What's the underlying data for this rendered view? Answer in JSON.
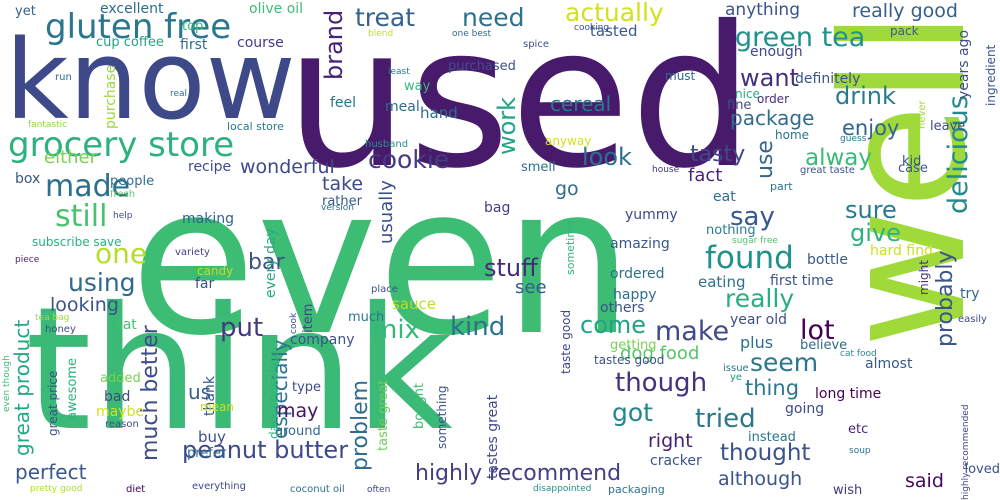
{
  "words": [
    {
      "text": "even",
      "color": "#3dbc74"
    },
    {
      "text": "used",
      "color": "#481a6c"
    },
    {
      "text": "think",
      "color": "#3aba76"
    },
    {
      "text": "well",
      "color": "#9fda3a"
    },
    {
      "text": "know",
      "color": "#3e4989"
    },
    {
      "text": "gluten free",
      "color": "#2a768e"
    },
    {
      "text": "grocery store",
      "color": "#2db27d"
    },
    {
      "text": "made",
      "color": "#2d708e"
    },
    {
      "text": "still",
      "color": "#4ac16d"
    },
    {
      "text": "one",
      "color": "#b5de2b"
    },
    {
      "text": "using",
      "color": "#31688e"
    },
    {
      "text": "looking",
      "color": "#3b528b"
    },
    {
      "text": "great product",
      "color": "#22a884"
    },
    {
      "text": "perfect",
      "color": "#38588c"
    },
    {
      "text": "treat",
      "color": "#34618d"
    },
    {
      "text": "need",
      "color": "#2c728e"
    },
    {
      "text": "actually",
      "color": "#d2e21b"
    },
    {
      "text": "anything",
      "color": "#3b528b"
    },
    {
      "text": "really good",
      "color": "#355f8d"
    },
    {
      "text": "green tea",
      "color": "#20928c"
    },
    {
      "text": "want",
      "color": "#46307e"
    },
    {
      "text": "drink",
      "color": "#287c8e"
    },
    {
      "text": "enjoy",
      "color": "#33638d"
    },
    {
      "text": "package",
      "color": "#2e6e8e"
    },
    {
      "text": "alway",
      "color": "#3aba76"
    },
    {
      "text": "tasty",
      "color": "#3f4889"
    },
    {
      "text": "fact",
      "color": "#482576"
    },
    {
      "text": "look",
      "color": "#2d708e"
    },
    {
      "text": "cookie",
      "color": "#443983"
    },
    {
      "text": "cereal",
      "color": "#2a788e"
    },
    {
      "text": "brand",
      "color": "#482173"
    },
    {
      "text": "work",
      "color": "#20a486"
    },
    {
      "text": "wonderful",
      "color": "#3e4989"
    },
    {
      "text": "either",
      "color": "#7ad151"
    },
    {
      "text": "found",
      "color": "#21918c"
    },
    {
      "text": "say",
      "color": "#38598c"
    },
    {
      "text": "sure",
      "color": "#2a788e"
    },
    {
      "text": "give",
      "color": "#2db27d"
    },
    {
      "text": "use",
      "color": "#31688e"
    },
    {
      "text": "delicious",
      "color": "#23898e"
    },
    {
      "text": "stuff",
      "color": "#482878"
    },
    {
      "text": "bar",
      "color": "#3b528b"
    },
    {
      "text": "really",
      "color": "#29af7f"
    },
    {
      "text": "lot",
      "color": "#440154"
    },
    {
      "text": "seem",
      "color": "#2a768e"
    },
    {
      "text": "probably",
      "color": "#39568c"
    },
    {
      "text": "kind",
      "color": "#2c728e"
    },
    {
      "text": "make",
      "color": "#3e4a89"
    },
    {
      "text": "come",
      "color": "#20a386"
    },
    {
      "text": "mix",
      "color": "#35b779"
    },
    {
      "text": "put",
      "color": "#443a83"
    },
    {
      "text": "much better",
      "color": "#3e4c8a"
    },
    {
      "text": "problem",
      "color": "#2e6d8e"
    },
    {
      "text": "especially",
      "color": "#2c738e"
    },
    {
      "text": "though",
      "color": "#46327e"
    },
    {
      "text": "dog food",
      "color": "#56c667"
    },
    {
      "text": "thing",
      "color": "#2a788e"
    },
    {
      "text": "got",
      "color": "#24868e"
    },
    {
      "text": "tried",
      "color": "#2a788e"
    },
    {
      "text": "thought",
      "color": "#3b528b"
    },
    {
      "text": "right",
      "color": "#481f70"
    },
    {
      "text": "peanut butter",
      "color": "#3e4989"
    },
    {
      "text": "highly recommend",
      "color": "#433e85"
    },
    {
      "text": "although",
      "color": "#3a548c"
    },
    {
      "text": "said",
      "color": "#460a5d"
    },
    {
      "text": "us",
      "color": "#34608d"
    },
    {
      "text": "may",
      "color": "#471365"
    },
    {
      "text": "take",
      "color": "#3e4989"
    },
    {
      "text": "usually",
      "color": "#3b518b"
    },
    {
      "text": "see",
      "color": "#375a8c"
    },
    {
      "text": "go",
      "color": "#2f6c8e"
    },
    {
      "text": "yet",
      "color": "#355f8d"
    },
    {
      "text": "excellent",
      "color": "#2f6b8e"
    },
    {
      "text": "olive oil",
      "color": "#3fbc73"
    },
    {
      "text": "top",
      "color": "#35b779"
    },
    {
      "text": "cup coffee",
      "color": "#20a486"
    },
    {
      "text": "first",
      "color": "#30698e"
    },
    {
      "text": "course",
      "color": "#443983"
    },
    {
      "text": "tasted",
      "color": "#38598c"
    },
    {
      "text": "purchased",
      "color": "#3d4e8a"
    },
    {
      "text": "must",
      "color": "#31688e"
    },
    {
      "text": "nice",
      "color": "#29af7f"
    },
    {
      "text": "definitely",
      "color": "#3b528b"
    },
    {
      "text": "enough",
      "color": "#3f4889"
    },
    {
      "text": "order",
      "color": "#472d7b"
    },
    {
      "text": "fine",
      "color": "#3c4f8a"
    },
    {
      "text": "home",
      "color": "#2d708e"
    },
    {
      "text": "leave",
      "color": "#3d4d8a"
    },
    {
      "text": "kid",
      "color": "#39568c"
    },
    {
      "text": "case",
      "color": "#39568c"
    },
    {
      "text": "part",
      "color": "#2c728e"
    },
    {
      "text": "eat",
      "color": "#2e6e8e"
    },
    {
      "text": "bottle",
      "color": "#38598c"
    },
    {
      "text": "hard find",
      "color": "#cae11f"
    },
    {
      "text": "first time",
      "color": "#3b528b"
    },
    {
      "text": "eating",
      "color": "#2d708e"
    },
    {
      "text": "year old",
      "color": "#3c4f8a"
    },
    {
      "text": "plus",
      "color": "#2d708e"
    },
    {
      "text": "believe",
      "color": "#30698e"
    },
    {
      "text": "almost",
      "color": "#38588c"
    },
    {
      "text": "long time",
      "color": "#440154"
    },
    {
      "text": "going",
      "color": "#3e4a89"
    },
    {
      "text": "etc",
      "color": "#482475"
    },
    {
      "text": "instead",
      "color": "#2b748e"
    },
    {
      "text": "cracker",
      "color": "#3a538b"
    },
    {
      "text": "wish",
      "color": "#453781"
    },
    {
      "text": "loved",
      "color": "#3b518b"
    },
    {
      "text": "try",
      "color": "#30698e"
    },
    {
      "text": "might",
      "color": "#46337e"
    },
    {
      "text": "years ago",
      "color": "#3d4e8a"
    },
    {
      "text": "ingredient",
      "color": "#3a548c"
    },
    {
      "text": "spice",
      "color": "#3d4e8a"
    },
    {
      "text": "cooking",
      "color": "#3b528b"
    },
    {
      "text": "one best",
      "color": "#2e6e8e"
    },
    {
      "text": "blend",
      "color": "#c2df23"
    },
    {
      "text": "pack",
      "color": "#38598c"
    },
    {
      "text": "run",
      "color": "#2f6c8e"
    },
    {
      "text": "least",
      "color": "#2a778e"
    },
    {
      "text": "real",
      "color": "#2e6d8e"
    },
    {
      "text": "purchase",
      "color": "#9bd93c"
    },
    {
      "text": "way",
      "color": "#35b779"
    },
    {
      "text": "meal",
      "color": "#2f6b8e"
    },
    {
      "text": "hand",
      "color": "#2e6d8e"
    },
    {
      "text": "feel",
      "color": "#2c738e"
    },
    {
      "text": "fantastic",
      "color": "#8bd646"
    },
    {
      "text": "local store",
      "color": "#2a788e"
    },
    {
      "text": "husband",
      "color": "#20928c"
    },
    {
      "text": "anyway",
      "color": "#d2e21b"
    },
    {
      "text": "smell",
      "color": "#2e6e8e"
    },
    {
      "text": "recipe",
      "color": "#3e4a89"
    },
    {
      "text": "box",
      "color": "#39558c"
    },
    {
      "text": "people",
      "color": "#2e6e8e"
    },
    {
      "text": "fresh",
      "color": "#5ec962"
    },
    {
      "text": "help",
      "color": "#3e4a89"
    },
    {
      "text": "making",
      "color": "#33628d"
    },
    {
      "text": "subscribe save",
      "color": "#29af7f"
    },
    {
      "text": "variety",
      "color": "#433e85"
    },
    {
      "text": "piece",
      "color": "#481d6f"
    },
    {
      "text": "candy",
      "color": "#bddf26"
    },
    {
      "text": "far",
      "color": "#3a548c"
    },
    {
      "text": "every day",
      "color": "#25ab82"
    },
    {
      "text": "rather",
      "color": "#38598c"
    },
    {
      "text": "version",
      "color": "#2f6b8e"
    },
    {
      "text": "bag",
      "color": "#433e85"
    },
    {
      "text": "yummy",
      "color": "#3e4a89"
    },
    {
      "text": "sometime",
      "color": "#32b67a"
    },
    {
      "text": "amazing",
      "color": "#38588c"
    },
    {
      "text": "nothing",
      "color": "#287c8e"
    },
    {
      "text": "sugar free",
      "color": "#52c569"
    },
    {
      "text": "ordered",
      "color": "#2d708e"
    },
    {
      "text": "happy",
      "color": "#2e6e8e"
    },
    {
      "text": "others",
      "color": "#3b528b"
    },
    {
      "text": "taste good",
      "color": "#3f4889"
    },
    {
      "text": "sauce",
      "color": "#b8de29"
    },
    {
      "text": "much",
      "color": "#2a778e"
    },
    {
      "text": "place",
      "color": "#3c4f8a"
    },
    {
      "text": "cook",
      "color": "#3b528b"
    },
    {
      "text": "item",
      "color": "#3e4989"
    },
    {
      "text": "company",
      "color": "#3b528b"
    },
    {
      "text": "thank",
      "color": "#38598c"
    },
    {
      "text": "getting",
      "color": "#7ad151"
    },
    {
      "text": "tastes good",
      "color": "#3b528b"
    },
    {
      "text": "issue",
      "color": "#2a788e"
    },
    {
      "text": "ye",
      "color": "#1f9e89"
    },
    {
      "text": "guess",
      "color": "#2a778e"
    },
    {
      "text": "great taste",
      "color": "#3b528b"
    },
    {
      "text": "house",
      "color": "#46337e"
    },
    {
      "text": "cat food",
      "color": "#21918c"
    },
    {
      "text": "never",
      "color": "#a5db36"
    },
    {
      "text": "highly recommended",
      "color": "#3f4889"
    },
    {
      "text": "easily",
      "color": "#3e4a89"
    },
    {
      "text": "soup",
      "color": "#2d708e"
    },
    {
      "text": "tea bag",
      "color": "#a0da39"
    },
    {
      "text": "honey",
      "color": "#3c4f8a"
    },
    {
      "text": "cat",
      "color": "#44bf70"
    },
    {
      "text": "added",
      "color": "#7ad151"
    },
    {
      "text": "bad",
      "color": "#3e4989"
    },
    {
      "text": "maybe",
      "color": "#d2e21b"
    },
    {
      "text": "awesome",
      "color": "#2db27d"
    },
    {
      "text": "great price",
      "color": "#3b528b"
    },
    {
      "text": "reason",
      "color": "#3c4f8a"
    },
    {
      "text": "mean",
      "color": "#c5e021"
    },
    {
      "text": "type",
      "color": "#3d4e8a"
    },
    {
      "text": "around",
      "color": "#30698e"
    },
    {
      "text": "dark chocolate",
      "color": "#2db27d"
    },
    {
      "text": "taste great",
      "color": "#6ccd5a"
    },
    {
      "text": "bought",
      "color": "#3fbc73"
    },
    {
      "text": "something",
      "color": "#3b528b"
    },
    {
      "text": "tastes great",
      "color": "#3e4989"
    },
    {
      "text": "buy",
      "color": "#3d4e8a"
    },
    {
      "text": "prefer",
      "color": "#2e6e8e"
    },
    {
      "text": "everything",
      "color": "#3e4a89"
    },
    {
      "text": "coconut oil",
      "color": "#2d708e"
    },
    {
      "text": "often",
      "color": "#3e4989"
    },
    {
      "text": "disappointed",
      "color": "#21918c"
    },
    {
      "text": "packaging",
      "color": "#2d708e"
    },
    {
      "text": "pretty good",
      "color": "#b0dd2f"
    },
    {
      "text": "diet",
      "color": "#440154"
    },
    {
      "text": "even though",
      "color": "#3dbc74"
    }
  ]
}
